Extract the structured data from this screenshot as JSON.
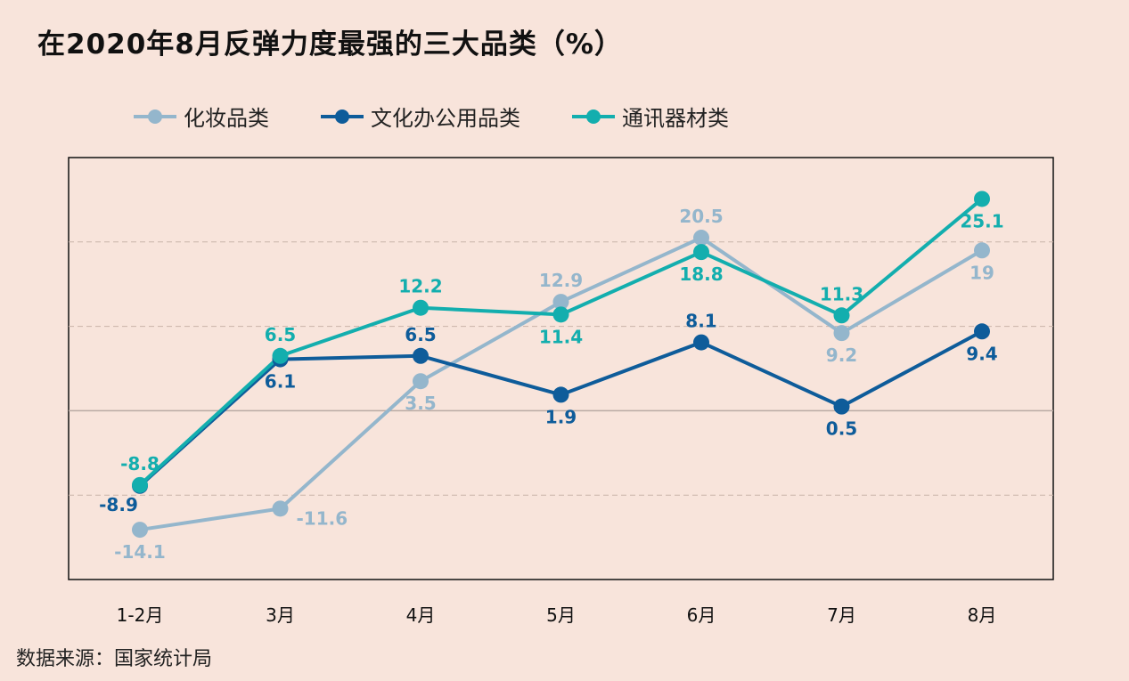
{
  "title": "在2020年8月反弹力度最强的三大品类（%）",
  "source": "数据来源：国家统计局",
  "chart_data": {
    "type": "line",
    "categories": [
      "1-2月",
      "3月",
      "4月",
      "5月",
      "6月",
      "7月",
      "8月"
    ],
    "ylim": [
      -20,
      30
    ],
    "grid": "dashed horizontal",
    "legend_position": "top",
    "series": [
      {
        "name": "化妆品类",
        "color": "#94b6cc",
        "values": [
          -14.1,
          -11.6,
          3.5,
          12.9,
          20.5,
          9.2,
          19
        ],
        "labels": [
          "-14.1",
          "-11.6",
          "3.5",
          "12.9",
          "20.5",
          "9.2",
          "19"
        ]
      },
      {
        "name": "文化办公用品类",
        "color": "#0e5c9a",
        "values": [
          -8.9,
          6.1,
          6.5,
          1.9,
          8.1,
          0.5,
          9.4
        ],
        "labels": [
          "-8.9",
          "6.1",
          "6.5",
          "1.9",
          "8.1",
          "0.5",
          "9.4"
        ]
      },
      {
        "name": "通讯器材类",
        "color": "#13aeae",
        "values": [
          -8.8,
          6.5,
          12.2,
          11.4,
          18.8,
          11.3,
          25.1
        ],
        "labels": [
          "-8.8",
          "6.5",
          "12.2",
          "11.4",
          "18.8",
          "11.3",
          "25.1"
        ]
      }
    ]
  }
}
